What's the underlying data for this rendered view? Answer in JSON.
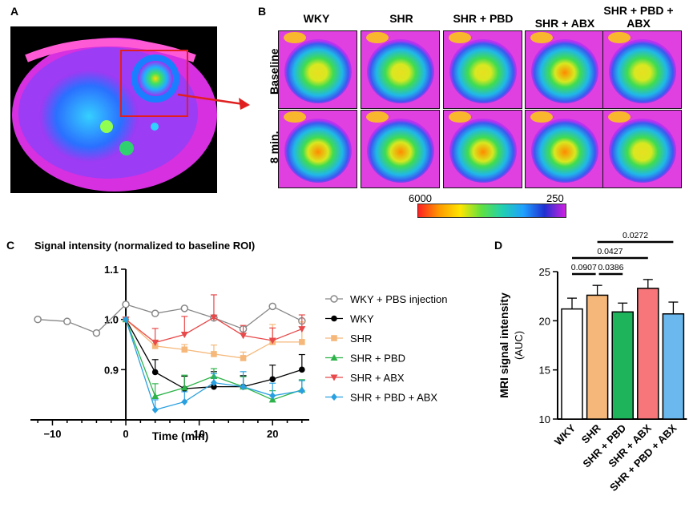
{
  "panel_labels": {
    "a": "A",
    "b": "B",
    "c": "C",
    "d": "D"
  },
  "panel_b": {
    "columns": [
      "WKY",
      "SHR",
      "SHR + PBD",
      "SHR + ABX",
      "SHR + PBD + ABX"
    ],
    "rows": [
      "Baseline",
      "8 min."
    ],
    "colorbar": {
      "max_label": "6000",
      "min_label": "250"
    }
  },
  "colors": {
    "wky": "#000000",
    "pbs": "#888888",
    "shr": "#f5b87a",
    "pbd": "#2db34a",
    "abx": "#e8494a",
    "pbdabx": "#29a0e0"
  },
  "chart_data": [
    {
      "type": "line",
      "title": "Signal intensity (normalized to baseline ROI)",
      "xlabel": "Time (min)",
      "ylabel": "",
      "xlim": [
        -13,
        25
      ],
      "ylim": [
        0.8,
        1.1
      ],
      "xticks": [
        -10,
        0,
        10,
        20
      ],
      "yticks": [
        0.9,
        1.0,
        1.1
      ],
      "ytick_labels": [
        "0.9",
        "1.0",
        "1.1"
      ],
      "series": [
        {
          "name": "WKY + PBS injection",
          "key": "pbs",
          "marker": "open-circle",
          "x": [
            -12,
            -8,
            -4,
            0,
            4,
            8,
            12,
            16,
            20,
            24
          ],
          "values": [
            1.0,
            0.996,
            0.973,
            1.03,
            1.012,
            1.022,
            1.003,
            0.981,
            1.026,
            0.997
          ]
        },
        {
          "name": "WKY",
          "key": "wky",
          "marker": "circle",
          "x": [
            0,
            4,
            8,
            12,
            16,
            20,
            24
          ],
          "values": [
            1.0,
            0.895,
            0.862,
            0.866,
            0.866,
            0.881,
            0.9
          ],
          "err": [
            0,
            0.025,
            0.025,
            0.03,
            0.022,
            0.028,
            0.03
          ]
        },
        {
          "name": "SHR",
          "key": "shr",
          "marker": "square",
          "x": [
            0,
            4,
            8,
            12,
            16,
            20,
            24
          ],
          "values": [
            1.0,
            0.947,
            0.94,
            0.931,
            0.923,
            0.955,
            0.955
          ],
          "err": [
            0,
            0.012,
            0.01,
            0.018,
            0.012,
            0.035,
            0.04
          ]
        },
        {
          "name": "SHR + PBD",
          "key": "pbd",
          "marker": "triangle-up",
          "x": [
            0,
            4,
            8,
            12,
            16,
            20,
            24
          ],
          "values": [
            1.0,
            0.847,
            0.864,
            0.887,
            0.866,
            0.84,
            0.86
          ],
          "err": [
            0,
            0.025,
            0.025,
            0.015,
            0.02,
            0.018,
            0.02
          ]
        },
        {
          "name": "SHR + ABX",
          "key": "abx",
          "marker": "triangle-down",
          "x": [
            0,
            4,
            8,
            12,
            16,
            20,
            24
          ],
          "values": [
            1.0,
            0.954,
            0.97,
            1.004,
            0.968,
            0.958,
            0.981
          ],
          "err": [
            0,
            0.028,
            0.036,
            0.045,
            0.02,
            0.025,
            0.028
          ]
        },
        {
          "name": "SHR + PBD + ABX",
          "key": "pbdabx",
          "marker": "diamond",
          "x": [
            0,
            4,
            8,
            12,
            16,
            20,
            24
          ],
          "values": [
            1.0,
            0.82,
            0.836,
            0.874,
            0.866,
            0.848,
            0.858
          ],
          "err": [
            0,
            0.02,
            0.02,
            0.018,
            0.03,
            0.025,
            0.02
          ]
        }
      ]
    },
    {
      "type": "bar",
      "title": "",
      "xlabel": "",
      "ylabel": "MRI signal intensity",
      "ylabel2": "(AUC)",
      "ylim": [
        10,
        25
      ],
      "yticks": [
        10,
        15,
        20,
        25
      ],
      "categories": [
        "WKY",
        "SHR",
        "SHR + PBD",
        "SHR + ABX",
        "SHR + PBD + ABX"
      ],
      "values": [
        21.2,
        22.6,
        20.9,
        23.3,
        20.7
      ],
      "err": [
        1.1,
        1.0,
        0.9,
        0.9,
        1.2
      ],
      "fills": [
        "#ffffff",
        "#f5b87a",
        "#1db45c",
        "#f7767a",
        "#6ab8ee"
      ],
      "significance": [
        {
          "label": "0.0907",
          "from": 0,
          "to": 1
        },
        {
          "label": "0.0386",
          "from": 1,
          "to": 2
        },
        {
          "label": "0.0427",
          "from": 0,
          "to": 3
        },
        {
          "label": "0.0272",
          "from": 1,
          "to": 4
        }
      ]
    }
  ]
}
